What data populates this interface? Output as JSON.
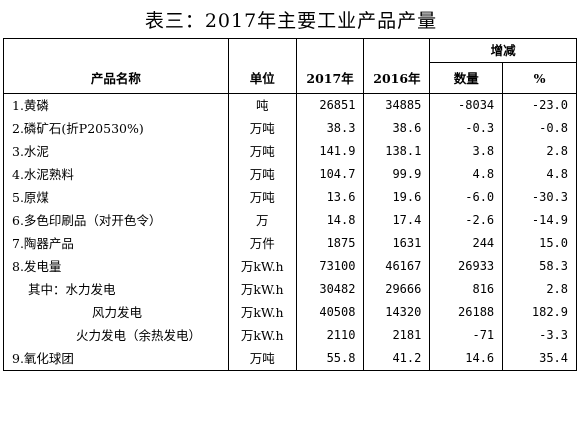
{
  "title": "表三：2017年主要工业产品产量",
  "headers": {
    "name": "产品名称",
    "unit": "单位",
    "y2017": "2017年",
    "y2016": "2016年",
    "change": "增减",
    "amount": "数量",
    "percent": "%"
  },
  "rows": [
    {
      "name": "1.黄磷",
      "unit": "吨",
      "y2017": "26851",
      "y2016": "34885",
      "amount": "-8034",
      "percent": "-23.0"
    },
    {
      "name": "2.磷矿石(折P20530%)",
      "unit": "万吨",
      "y2017": "38.3",
      "y2016": "38.6",
      "amount": "-0.3",
      "percent": "-0.8"
    },
    {
      "name": "3.水泥",
      "unit": "万吨",
      "y2017": "141.9",
      "y2016": "138.1",
      "amount": "3.8",
      "percent": "2.8"
    },
    {
      "name": "4.水泥熟料",
      "unit": "万吨",
      "y2017": "104.7",
      "y2016": "99.9",
      "amount": "4.8",
      "percent": "4.8"
    },
    {
      "name": "5.原煤",
      "unit": "万吨",
      "y2017": "13.6",
      "y2016": "19.6",
      "amount": "-6.0",
      "percent": "-30.3"
    },
    {
      "name": "6.多色印刷品（对开色令）",
      "unit": "万",
      "y2017": "14.8",
      "y2016": "17.4",
      "amount": "-2.6",
      "percent": "-14.9"
    },
    {
      "name": "7.陶器产品",
      "unit": "万件",
      "y2017": "1875",
      "y2016": "1631",
      "amount": "244",
      "percent": "15.0"
    },
    {
      "name": "8.发电量",
      "unit": "万kW.h",
      "y2017": "73100",
      "y2016": "46167",
      "amount": "26933",
      "percent": "58.3"
    },
    {
      "name": "其中：水力发电",
      "unit": "万kW.h",
      "y2017": "30482",
      "y2016": "29666",
      "amount": "816",
      "percent": "2.8"
    },
    {
      "name": "风力发电",
      "unit": "万kW.h",
      "y2017": "40508",
      "y2016": "14320",
      "amount": "26188",
      "percent": "182.9"
    },
    {
      "name": "火力发电（余热发电）",
      "unit": "万kW.h",
      "y2017": "2110",
      "y2016": "2181",
      "amount": "-71",
      "percent": "-3.3"
    },
    {
      "name": "9.氧化球团",
      "unit": "万吨",
      "y2017": "55.8",
      "y2016": "41.2",
      "amount": "14.6",
      "percent": "35.4"
    }
  ]
}
